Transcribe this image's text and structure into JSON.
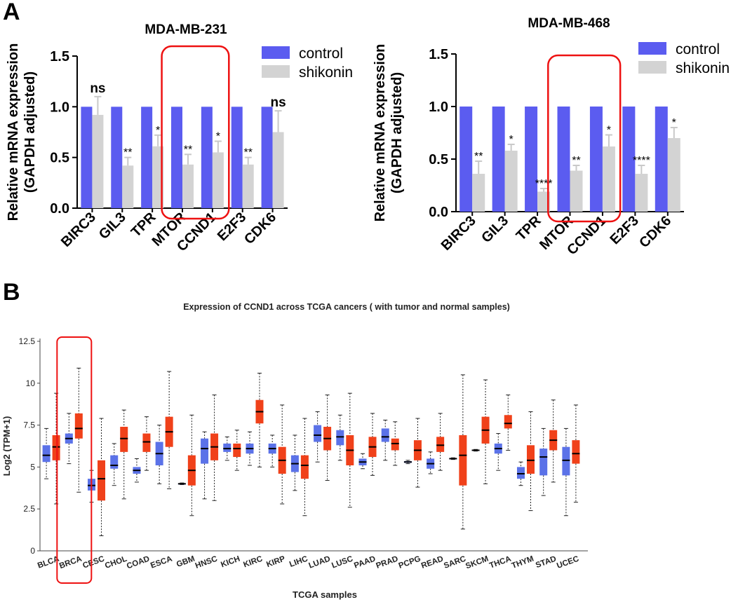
{
  "panel_a_label": "A",
  "panel_b_label": "B",
  "chart_data": [
    {
      "type": "bar",
      "title": "MDA-MB-231",
      "ylabel_line1": "Relative mRNA expression",
      "ylabel_line2": "(GAPDH adjusted)",
      "ylim": [
        0,
        1.5
      ],
      "yticks": [
        "0.0",
        "0.5",
        "1.0",
        "1.5"
      ],
      "categories": [
        "BIRC3",
        "GIL3",
        "TPR",
        "MTOR",
        "CCND1",
        "E2F3",
        "CDK6"
      ],
      "series": [
        {
          "name": "control",
          "color": "#5b5cf0",
          "values": [
            1.0,
            1.0,
            1.0,
            1.0,
            1.0,
            1.0,
            1.0
          ]
        },
        {
          "name": "shikonin",
          "color": "#d3d3d3",
          "values": [
            0.92,
            0.42,
            0.61,
            0.43,
            0.55,
            0.43,
            0.75
          ],
          "errors": [
            0.18,
            0.08,
            0.11,
            0.1,
            0.11,
            0.07,
            0.21
          ]
        }
      ],
      "significance": [
        "ns",
        "**",
        "*",
        "**",
        "*",
        "**",
        "ns"
      ],
      "highlight": [
        "MTOR",
        "CCND1"
      ]
    },
    {
      "type": "bar",
      "title": "MDA-MB-468",
      "ylabel_line1": "Relative mRNA expression",
      "ylabel_line2": "(GAPDH adjusted)",
      "ylim": [
        0,
        1.5
      ],
      "yticks": [
        "0.0",
        "0.5",
        "1.0",
        "1.5"
      ],
      "categories": [
        "BIRC3",
        "GIL3",
        "TPR",
        "MTOR",
        "CCND1",
        "E2F3",
        "CDK6"
      ],
      "series": [
        {
          "name": "control",
          "color": "#5b5cf0",
          "values": [
            1.0,
            1.0,
            1.0,
            1.0,
            1.0,
            1.0,
            1.0
          ]
        },
        {
          "name": "shikonin",
          "color": "#d3d3d3",
          "values": [
            0.36,
            0.58,
            0.19,
            0.39,
            0.62,
            0.36,
            0.7
          ],
          "errors": [
            0.12,
            0.06,
            0.03,
            0.05,
            0.11,
            0.08,
            0.1
          ]
        }
      ],
      "significance": [
        "**",
        "*",
        "****",
        "**",
        "*",
        "****",
        "*"
      ],
      "highlight": [
        "MTOR",
        "CCND1"
      ]
    },
    {
      "type": "boxplot",
      "title": "Expression of CCND1 across TCGA cancers ( with tumor and normal samples)",
      "xlabel": "TCGA samples",
      "ylabel": "Log2 (TPM+1)",
      "ylim": [
        0,
        12.5
      ],
      "yticks": [
        "0",
        "2.5",
        "5",
        "7.5",
        "10",
        "12.5"
      ],
      "series_colors": {
        "normal": "#5b72e8",
        "tumor": "#f0411a"
      },
      "highlight": [
        "BRCA"
      ],
      "categories": [
        {
          "name": "BLCA",
          "normal": [
            4.3,
            5.3,
            5.7,
            6.3,
            7.3
          ],
          "tumor": [
            2.8,
            5.4,
            6.2,
            6.9,
            9.4
          ]
        },
        {
          "name": "BRCA",
          "normal": [
            5.2,
            6.4,
            6.7,
            7.0,
            8.2
          ],
          "tumor": [
            3.5,
            6.7,
            7.3,
            8.2,
            10.9
          ]
        },
        {
          "name": "CESC",
          "normal": [
            2.9,
            3.6,
            3.9,
            4.3,
            4.8
          ],
          "tumor": [
            0.9,
            3.0,
            4.3,
            5.4,
            7.9
          ]
        },
        {
          "name": "CHOL",
          "normal": [
            3.9,
            4.9,
            5.1,
            5.7,
            6.4
          ],
          "tumor": [
            3.1,
            5.9,
            6.7,
            7.4,
            8.4
          ]
        },
        {
          "name": "COAD",
          "normal": [
            4.1,
            4.6,
            4.8,
            5.0,
            5.5
          ],
          "tumor": [
            4.8,
            5.9,
            6.5,
            7.0,
            8.0
          ]
        },
        {
          "name": "ESCA",
          "normal": [
            4.0,
            5.1,
            5.8,
            6.5,
            7.5
          ],
          "tumor": [
            3.7,
            6.2,
            7.1,
            8.0,
            10.7
          ]
        },
        {
          "name": "GBM",
          "normal": [
            3.95,
            3.98,
            4.0,
            4.02,
            4.05
          ],
          "tumor": [
            2.1,
            3.9,
            4.8,
            5.7,
            8.1
          ]
        },
        {
          "name": "HNSC",
          "normal": [
            3.1,
            5.2,
            6.1,
            6.7,
            7.1
          ],
          "tumor": [
            3.0,
            5.4,
            6.2,
            7.0,
            9.3
          ]
        },
        {
          "name": "KICH",
          "normal": [
            5.4,
            5.9,
            6.1,
            6.4,
            6.8
          ],
          "tumor": [
            4.8,
            5.6,
            6.1,
            6.4,
            7.2
          ]
        },
        {
          "name": "KIRC",
          "normal": [
            5.1,
            5.8,
            6.1,
            6.4,
            7.1
          ],
          "tumor": [
            5.0,
            7.6,
            8.3,
            9.0,
            10.6
          ]
        },
        {
          "name": "KIRP",
          "normal": [
            5.0,
            5.8,
            6.1,
            6.4,
            6.9
          ],
          "tumor": [
            2.8,
            4.6,
            5.4,
            6.2,
            8.7
          ]
        },
        {
          "name": "LIHC",
          "normal": [
            3.6,
            4.7,
            5.2,
            5.7,
            6.9
          ],
          "tumor": [
            2.1,
            4.3,
            5.1,
            5.7,
            7.9
          ]
        },
        {
          "name": "LUAD",
          "normal": [
            5.3,
            6.5,
            6.9,
            7.5,
            8.3
          ],
          "tumor": [
            4.2,
            6.0,
            6.7,
            7.4,
            9.3
          ]
        },
        {
          "name": "LUSC",
          "normal": [
            5.4,
            6.3,
            6.8,
            7.2,
            8.1
          ],
          "tumor": [
            2.6,
            5.1,
            6.0,
            6.9,
            9.4
          ]
        },
        {
          "name": "PAAD",
          "normal": [
            4.9,
            5.1,
            5.3,
            5.5,
            5.8
          ],
          "tumor": [
            4.5,
            5.6,
            6.2,
            6.8,
            8.2
          ]
        },
        {
          "name": "PRAD",
          "normal": [
            5.4,
            6.5,
            6.8,
            7.3,
            7.8
          ],
          "tumor": [
            5.1,
            6.0,
            6.4,
            6.7,
            7.7
          ]
        },
        {
          "name": "PCPG",
          "normal": [
            5.2,
            5.25,
            5.3,
            5.35,
            5.4
          ],
          "tumor": [
            3.8,
            5.4,
            6.0,
            6.6,
            7.9
          ]
        },
        {
          "name": "READ",
          "normal": [
            4.6,
            4.9,
            5.2,
            5.5,
            5.9
          ],
          "tumor": [
            4.8,
            5.9,
            6.3,
            6.8,
            8.2
          ]
        },
        {
          "name": "SARC",
          "normal": [
            5.45,
            5.48,
            5.5,
            5.52,
            5.55
          ],
          "tumor": [
            1.3,
            3.9,
            5.7,
            6.9,
            10.5
          ]
        },
        {
          "name": "SKCM",
          "normal": [
            5.95,
            5.97,
            6.0,
            6.02,
            6.05
          ],
          "tumor": [
            4.0,
            6.4,
            7.2,
            8.0,
            10.2
          ]
        },
        {
          "name": "THCA",
          "normal": [
            4.8,
            5.8,
            6.1,
            6.4,
            7.0
          ],
          "tumor": [
            6.0,
            7.3,
            7.6,
            8.1,
            9.3
          ]
        },
        {
          "name": "THYM",
          "normal": [
            3.9,
            4.3,
            4.6,
            5.0,
            5.3
          ],
          "tumor": [
            2.4,
            4.6,
            5.4,
            6.3,
            8.3
          ]
        },
        {
          "name": "STAD",
          "normal": [
            3.3,
            4.5,
            5.6,
            6.1,
            7.3
          ],
          "tumor": [
            4.1,
            6.0,
            6.6,
            7.2,
            9.0
          ]
        },
        {
          "name": "UCEC",
          "normal": [
            2.1,
            4.5,
            5.4,
            6.2,
            7.3
          ],
          "tumor": [
            2.9,
            5.2,
            5.8,
            6.6,
            8.7
          ]
        }
      ]
    }
  ]
}
